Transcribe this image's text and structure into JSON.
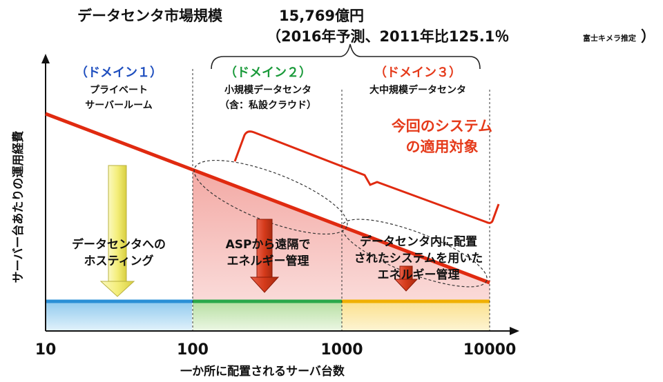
{
  "header": {
    "market_title": "データセンタ市場規模",
    "market_value": "15,769億円",
    "forecast": "（2016年予測、2011年比125.1％",
    "source": "富士キメラ推定",
    "close_paren": "）"
  },
  "y_axis_label": "サーバー台あたりの運用経費",
  "x_axis_label": "一か所に配置されるサーバ台数",
  "x_ticks": [
    "10",
    "100",
    "1000",
    "10000"
  ],
  "domains": [
    {
      "title": "（ドメイン１）",
      "line1": "プライベート",
      "line2": "サーバールーム",
      "color": "#1f4fbf"
    },
    {
      "title": "（ドメイン２）",
      "line1": "小規模データセンタ",
      "line2": "（含：私設クラウド）",
      "color": "#1a9a3a"
    },
    {
      "title": "（ドメイン３）",
      "line1": "大中規模データセンタ",
      "line2": "",
      "color": "#e53a1a"
    }
  ],
  "target_label": {
    "line1": "今回のシステム",
    "line2": "の適用対象",
    "color": "#e53a1a"
  },
  "region_labels": [
    {
      "line1": "データセンタへの",
      "line2": "ホスティング",
      "line3": ""
    },
    {
      "line1": "ASPから遠隔で",
      "line2": "エネルギー管理",
      "line3": ""
    },
    {
      "line1": "データセンタ内に配置",
      "line2": "されたシステムを用いた",
      "line3": "エネルギー管理"
    }
  ],
  "colors": {
    "cost_line": "#e02a10",
    "band1": "#2a8fd6",
    "band2": "#2aa84a",
    "band3": "#f0b000",
    "arrow_yellow": "#f4f08a",
    "arrow_red": "#d43a1a"
  }
}
